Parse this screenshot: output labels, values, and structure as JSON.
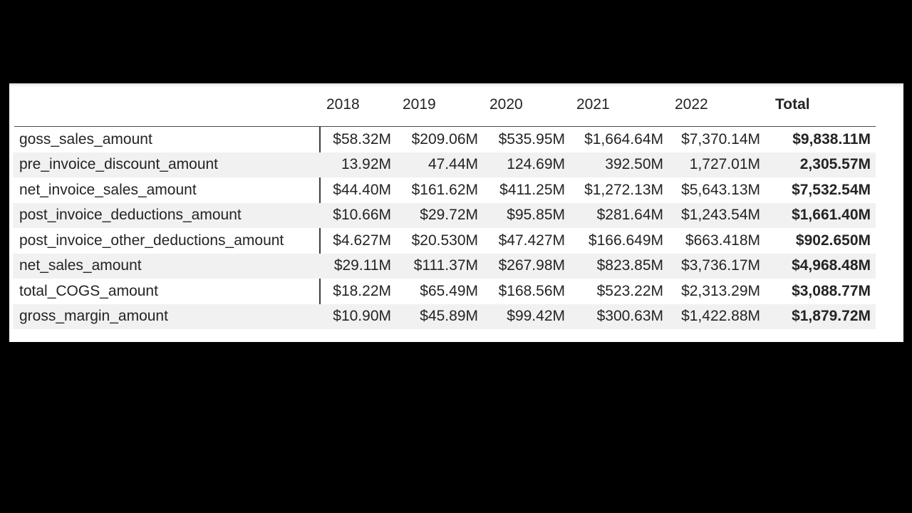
{
  "colors": {
    "page_background": "#000000",
    "card_background": "#ffffff",
    "row_stripe": "#f1f1f1",
    "text": "#252423",
    "header_separator_line": "#4a4a4a",
    "column_divider_line": "#3d3d3d"
  },
  "chart_data": {
    "type": "table",
    "legend_position": "none",
    "grid": "row-stripes",
    "columns": [
      "",
      "2018",
      "2019",
      "2020",
      "2021",
      "2022",
      "Total"
    ],
    "rows": [
      {
        "label": "goss_sales_amount",
        "values": [
          "$58.32M",
          "$209.06M",
          "$535.95M",
          "$1,664.64M",
          "$7,370.14M",
          "$9,838.11M"
        ]
      },
      {
        "label": "pre_invoice_discount_amount",
        "values": [
          "13.92M",
          "47.44M",
          "124.69M",
          "392.50M",
          "1,727.01M",
          "2,305.57M"
        ]
      },
      {
        "label": "net_invoice_sales_amount",
        "values": [
          "$44.40M",
          "$161.62M",
          "$411.25M",
          "$1,272.13M",
          "$5,643.13M",
          "$7,532.54M"
        ]
      },
      {
        "label": "post_invoice_deductions_amount",
        "values": [
          "$10.66M",
          "$29.72M",
          "$95.85M",
          "$281.64M",
          "$1,243.54M",
          "$1,661.40M"
        ]
      },
      {
        "label": "post_invoice_other_deductions_amount",
        "values": [
          "$4.627M",
          "$20.530M",
          "$47.427M",
          "$166.649M",
          "$663.418M",
          "$902.650M"
        ]
      },
      {
        "label": "net_sales_amount",
        "values": [
          "$29.11M",
          "$111.37M",
          "$267.98M",
          "$823.85M",
          "$3,736.17M",
          "$4,968.48M"
        ]
      },
      {
        "label": "total_COGS_amount",
        "values": [
          "$18.22M",
          "$65.49M",
          "$168.56M",
          "$523.22M",
          "$2,313.29M",
          "$3,088.77M"
        ]
      },
      {
        "label": "gross_margin_amount",
        "values": [
          "$10.90M",
          "$45.89M",
          "$99.42M",
          "$300.63M",
          "$1,422.88M",
          "$1,879.72M"
        ]
      }
    ]
  }
}
